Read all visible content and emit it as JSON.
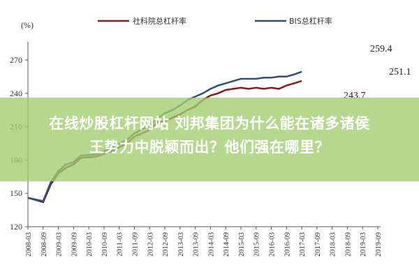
{
  "chart_data": {
    "type": "line",
    "unit_label": "(%)",
    "ylim": [
      120,
      280
    ],
    "yticks": [
      120,
      150,
      180,
      210,
      240,
      270
    ],
    "x": [
      "2008-03",
      "2008-09",
      "2009-03",
      "2009-09",
      "2010-03",
      "2010-09",
      "2011-03",
      "2011-09",
      "2012-03",
      "2012-09",
      "2013-03",
      "2013-09",
      "2014-03",
      "2014-09",
      "2015-03",
      "2015-09",
      "2016-03",
      "2016-09",
      "2017-03",
      "2017-09",
      "2018-03",
      "2018-09",
      "2019-03",
      "2019-09"
    ],
    "legend_position": "top",
    "series": [
      {
        "name": "社科院总杠杆率",
        "color": "#8b1a1a",
        "points": [
          [
            0,
            146
          ],
          [
            2,
            142
          ],
          [
            3,
            158
          ],
          [
            4,
            168
          ],
          [
            5,
            173
          ],
          [
            6,
            176
          ],
          [
            7,
            182
          ],
          [
            9,
            183
          ],
          [
            11,
            188
          ],
          [
            13,
            195
          ],
          [
            14,
            201
          ],
          [
            16,
            207
          ],
          [
            17,
            214
          ],
          [
            18,
            215
          ],
          [
            19,
            218
          ],
          [
            20,
            221
          ],
          [
            21,
            225
          ],
          [
            22,
            228
          ],
          [
            23,
            234
          ],
          [
            24,
            238
          ],
          [
            25,
            240
          ],
          [
            26,
            243
          ],
          [
            27,
            244
          ],
          [
            28,
            245
          ],
          [
            29,
            244
          ],
          [
            30,
            245
          ],
          [
            31,
            244
          ],
          [
            32,
            245
          ],
          [
            33,
            244
          ],
          [
            34,
            247
          ],
          [
            35,
            249
          ],
          [
            36,
            251.1
          ]
        ]
      },
      {
        "name": "BIS总杠杆率",
        "color": "#2e4f7f",
        "points": [
          [
            0,
            146
          ],
          [
            2,
            143
          ],
          [
            3,
            160
          ],
          [
            4,
            170
          ],
          [
            5,
            176
          ],
          [
            6,
            178
          ],
          [
            7,
            184
          ],
          [
            9,
            185
          ],
          [
            11,
            191
          ],
          [
            13,
            198
          ],
          [
            14,
            204
          ],
          [
            16,
            211
          ],
          [
            17,
            217
          ],
          [
            18,
            222
          ],
          [
            19,
            225
          ],
          [
            20,
            229
          ],
          [
            21,
            234
          ],
          [
            22,
            237
          ],
          [
            23,
            240
          ],
          [
            24,
            244
          ],
          [
            25,
            247
          ],
          [
            26,
            249
          ],
          [
            27,
            251
          ],
          [
            28,
            253
          ],
          [
            29,
            253
          ],
          [
            30,
            253
          ],
          [
            31,
            254
          ],
          [
            32,
            254
          ],
          [
            33,
            255
          ],
          [
            34,
            255
          ],
          [
            35,
            257
          ],
          [
            36,
            259.4
          ]
        ]
      }
    ],
    "annotations": [
      "259.4",
      "251.1",
      "243.7"
    ]
  },
  "overlay": {
    "title_line1": "在线炒股杠杆网站 刘邦集团为什么能在诸多诸侯",
    "title_line2": "王势力中脱颖而出？他们强在哪里？"
  }
}
